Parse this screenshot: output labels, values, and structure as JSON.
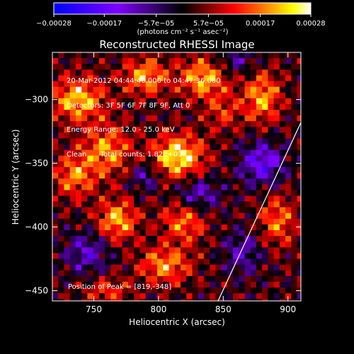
{
  "chart_data": {
    "type": "heatmap",
    "title": "Reconstructed RHESSI Image",
    "xlabel": "Heliocentric X (arcsec)",
    "ylabel": "Heliocentric Y (arcsec)",
    "xlim": [
      718,
      910
    ],
    "ylim": [
      -458,
      -263
    ],
    "x_ticks": [
      750,
      800,
      850,
      900
    ],
    "x_tick_labels": [
      "750",
      "800",
      "850",
      "900"
    ],
    "y_ticks": [
      -300,
      -350,
      -400,
      -450
    ],
    "y_tick_labels": [
      "−300",
      "−350",
      "−400",
      "−450"
    ],
    "info_lines": [
      "20-Mar-2012 04:44:40.000 to 04:47:36.000",
      "Detectors: 3F 5F 6F 7F 8F 9F, Att 0",
      "Energy Range: 12.0 - 25.0 keV",
      "Clean      Total counts: 1.82E+03"
    ],
    "peak_label": "Position of Peak = [819,-348]",
    "peak_position": [
      819,
      -348
    ],
    "limb_line": [
      [
        846,
        -458
      ],
      [
        910,
        -318
      ]
    ],
    "colorbar": {
      "range": [
        -0.00028,
        0.00028
      ],
      "tick_values": [
        -0.00028,
        -0.00017,
        -5.7e-05,
        5.7e-05,
        0.00017,
        0.00028
      ],
      "tick_labels": [
        "−0.00028",
        "−0.00017",
        "−5.7e−05",
        "5.7e−05",
        "0.00017",
        "0.00028"
      ],
      "unit_label": "(photons cm⁻² s⁻¹ asec⁻²)",
      "colors": [
        "#0000ff",
        "#7f00ff",
        "#000000",
        "#ff0000",
        "#ff8000",
        "#ffff00",
        "#ffffff"
      ]
    },
    "blobs": [
      {
        "x": 738,
        "y": -300,
        "sx": 14,
        "sy": 12,
        "amp": 0.85
      },
      {
        "x": 790,
        "y": -282,
        "sx": 12,
        "sy": 10,
        "amp": 0.75
      },
      {
        "x": 835,
        "y": -283,
        "sx": 13,
        "sy": 11,
        "amp": 0.8
      },
      {
        "x": 815,
        "y": -345,
        "sx": 14,
        "sy": 12,
        "amp": 1.0
      },
      {
        "x": 760,
        "y": -340,
        "sx": 13,
        "sy": 14,
        "amp": 0.7
      },
      {
        "x": 735,
        "y": -360,
        "sx": 11,
        "sy": 12,
        "amp": 0.65
      },
      {
        "x": 768,
        "y": -395,
        "sx": 11,
        "sy": 11,
        "amp": 0.8
      },
      {
        "x": 820,
        "y": -395,
        "sx": 12,
        "sy": 12,
        "amp": 0.65
      },
      {
        "x": 805,
        "y": -430,
        "sx": 14,
        "sy": 10,
        "amp": 0.7
      },
      {
        "x": 880,
        "y": -298,
        "sx": 10,
        "sy": 14,
        "amp": 0.75
      },
      {
        "x": 892,
        "y": -395,
        "sx": 10,
        "sy": 14,
        "amp": 0.6
      },
      {
        "x": 760,
        "y": -450,
        "sx": 12,
        "sy": 8,
        "amp": 0.45
      },
      {
        "x": 850,
        "y": -310,
        "sx": 10,
        "sy": 10,
        "amp": 0.4
      },
      {
        "x": 830,
        "y": -375,
        "sx": 12,
        "sy": 10,
        "amp": -0.6
      },
      {
        "x": 880,
        "y": -350,
        "sx": 12,
        "sy": 12,
        "amp": -0.75
      },
      {
        "x": 865,
        "y": -420,
        "sx": 10,
        "sy": 12,
        "amp": -0.5
      },
      {
        "x": 745,
        "y": -420,
        "sx": 12,
        "sy": 12,
        "amp": -0.55
      },
      {
        "x": 790,
        "y": -360,
        "sx": 8,
        "sy": 8,
        "amp": -0.5
      },
      {
        "x": 860,
        "y": -270,
        "sx": 12,
        "sy": 8,
        "amp": -0.4
      }
    ]
  }
}
